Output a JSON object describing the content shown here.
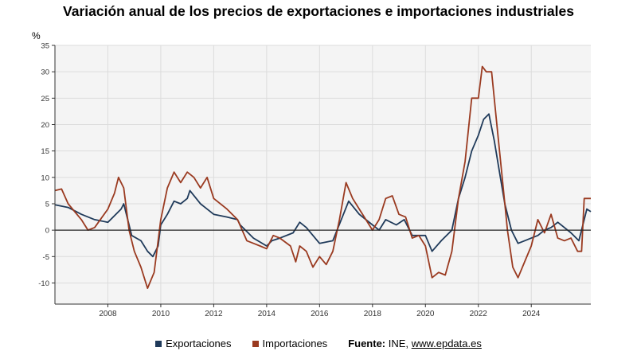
{
  "title": "Variación anual de los precios de exportaciones e importaciones industriales",
  "legend": {
    "series1": "Exportaciones",
    "series2": "Importaciones",
    "source_label": "Fuente:",
    "source_text": "INE,",
    "source_link": "www.epdata.es"
  },
  "colors": {
    "exportaciones": "#1f3a5a",
    "importaciones": "#9a3a20",
    "plot_bg": "#f4f4f4",
    "grid": "#dcdcdc",
    "zero_line": "#222222"
  },
  "chart_data": {
    "type": "line",
    "ylabel": "%",
    "ylim": [
      -14,
      35
    ],
    "yticks": [
      35,
      30,
      25,
      20,
      15,
      10,
      5,
      0,
      -5,
      -10
    ],
    "xlim": [
      2006.0,
      2026.25
    ],
    "xticks": [
      2008,
      2010,
      2012,
      2014,
      2016,
      2018,
      2020,
      2022,
      2024
    ],
    "grid": true,
    "legend_position": "bottom",
    "series": [
      {
        "name": "Exportaciones",
        "color": "#1f3a5a",
        "points": [
          [
            2006.0,
            4.8
          ],
          [
            2006.5,
            4.3
          ],
          [
            2007.0,
            3.0
          ],
          [
            2007.5,
            2.0
          ],
          [
            2008.0,
            1.5
          ],
          [
            2008.5,
            4.0
          ],
          [
            2008.6,
            5.0
          ],
          [
            2008.75,
            2.0
          ],
          [
            2008.9,
            -1.0
          ],
          [
            2009.25,
            -2.0
          ],
          [
            2009.5,
            -4.0
          ],
          [
            2009.7,
            -5.0
          ],
          [
            2009.9,
            -3.0
          ],
          [
            2010.0,
            1.0
          ],
          [
            2010.25,
            3.0
          ],
          [
            2010.5,
            5.5
          ],
          [
            2010.75,
            5.0
          ],
          [
            2011.0,
            6.0
          ],
          [
            2011.1,
            7.5
          ],
          [
            2011.5,
            5.0
          ],
          [
            2012.0,
            3.0
          ],
          [
            2012.5,
            2.5
          ],
          [
            2012.9,
            2.0
          ],
          [
            2013.0,
            1.0
          ],
          [
            2013.5,
            -1.5
          ],
          [
            2014.0,
            -3.0
          ],
          [
            2014.2,
            -2.0
          ],
          [
            2014.5,
            -1.5
          ],
          [
            2015.0,
            -0.5
          ],
          [
            2015.25,
            1.5
          ],
          [
            2015.5,
            0.5
          ],
          [
            2016.0,
            -2.5
          ],
          [
            2016.5,
            -2.0
          ],
          [
            2016.9,
            3.0
          ],
          [
            2017.1,
            5.5
          ],
          [
            2017.5,
            3.0
          ],
          [
            2018.0,
            1.0
          ],
          [
            2018.25,
            0.0
          ],
          [
            2018.5,
            2.0
          ],
          [
            2018.9,
            1.0
          ],
          [
            2019.2,
            2.0
          ],
          [
            2019.5,
            -1.0
          ],
          [
            2020.0,
            -1.0
          ],
          [
            2020.25,
            -4.0
          ],
          [
            2020.6,
            -2.0
          ],
          [
            2021.0,
            0.0
          ],
          [
            2021.25,
            6.0
          ],
          [
            2021.5,
            10.0
          ],
          [
            2021.75,
            15.0
          ],
          [
            2022.0,
            18.0
          ],
          [
            2022.2,
            21.0
          ],
          [
            2022.4,
            22.0
          ],
          [
            2022.6,
            17.0
          ],
          [
            2022.8,
            11.0
          ],
          [
            2023.0,
            5.0
          ],
          [
            2023.25,
            0.0
          ],
          [
            2023.5,
            -2.5
          ],
          [
            2023.75,
            -2.0
          ],
          [
            2024.0,
            -1.5
          ],
          [
            2024.25,
            -1.0
          ],
          [
            2024.5,
            0.0
          ],
          [
            2024.75,
            0.5
          ],
          [
            2025.0,
            1.5
          ],
          [
            2025.25,
            0.5
          ],
          [
            2025.5,
            -0.5
          ],
          [
            2025.8,
            -2.0
          ],
          [
            2026.0,
            2.0
          ],
          [
            2026.1,
            4.0
          ],
          [
            2026.25,
            3.5
          ]
        ]
      },
      {
        "name": "Importaciones",
        "color": "#9a3a20",
        "points": [
          [
            2006.0,
            7.5
          ],
          [
            2006.25,
            7.8
          ],
          [
            2006.5,
            5.0
          ],
          [
            2007.0,
            2.0
          ],
          [
            2007.25,
            0.0
          ],
          [
            2007.5,
            0.5
          ],
          [
            2008.0,
            4.0
          ],
          [
            2008.25,
            7.0
          ],
          [
            2008.4,
            10.0
          ],
          [
            2008.6,
            8.0
          ],
          [
            2008.8,
            0.0
          ],
          [
            2009.0,
            -4.0
          ],
          [
            2009.25,
            -7.0
          ],
          [
            2009.5,
            -11.0
          ],
          [
            2009.75,
            -8.0
          ],
          [
            2010.0,
            2.0
          ],
          [
            2010.25,
            8.0
          ],
          [
            2010.5,
            11.0
          ],
          [
            2010.75,
            9.0
          ],
          [
            2011.0,
            11.0
          ],
          [
            2011.25,
            10.0
          ],
          [
            2011.5,
            8.0
          ],
          [
            2011.75,
            10.0
          ],
          [
            2012.0,
            6.0
          ],
          [
            2012.5,
            4.0
          ],
          [
            2012.9,
            2.0
          ],
          [
            2013.25,
            -2.0
          ],
          [
            2013.5,
            -2.5
          ],
          [
            2013.75,
            -3.0
          ],
          [
            2014.0,
            -3.5
          ],
          [
            2014.25,
            -1.0
          ],
          [
            2014.5,
            -1.5
          ],
          [
            2014.9,
            -3.0
          ],
          [
            2015.1,
            -6.0
          ],
          [
            2015.25,
            -3.0
          ],
          [
            2015.5,
            -4.0
          ],
          [
            2015.75,
            -7.0
          ],
          [
            2016.0,
            -5.0
          ],
          [
            2016.25,
            -6.5
          ],
          [
            2016.5,
            -4.0
          ],
          [
            2016.75,
            2.0
          ],
          [
            2017.0,
            9.0
          ],
          [
            2017.25,
            6.0
          ],
          [
            2017.5,
            4.0
          ],
          [
            2017.75,
            2.0
          ],
          [
            2018.0,
            0.0
          ],
          [
            2018.25,
            2.0
          ],
          [
            2018.5,
            6.0
          ],
          [
            2018.75,
            6.5
          ],
          [
            2019.0,
            3.0
          ],
          [
            2019.25,
            2.5
          ],
          [
            2019.5,
            -1.5
          ],
          [
            2019.75,
            -1.0
          ],
          [
            2020.0,
            -3.0
          ],
          [
            2020.25,
            -9.0
          ],
          [
            2020.5,
            -8.0
          ],
          [
            2020.75,
            -8.5
          ],
          [
            2021.0,
            -4.0
          ],
          [
            2021.25,
            6.0
          ],
          [
            2021.5,
            13.0
          ],
          [
            2021.75,
            25.0
          ],
          [
            2022.0,
            25.0
          ],
          [
            2022.15,
            31.0
          ],
          [
            2022.3,
            30.0
          ],
          [
            2022.5,
            30.0
          ],
          [
            2022.7,
            20.0
          ],
          [
            2022.9,
            10.0
          ],
          [
            2023.1,
            0.0
          ],
          [
            2023.3,
            -7.0
          ],
          [
            2023.5,
            -9.0
          ],
          [
            2023.75,
            -6.0
          ],
          [
            2024.0,
            -3.0
          ],
          [
            2024.25,
            2.0
          ],
          [
            2024.5,
            -0.5
          ],
          [
            2024.75,
            3.0
          ],
          [
            2025.0,
            -1.5
          ],
          [
            2025.25,
            -2.0
          ],
          [
            2025.5,
            -1.5
          ],
          [
            2025.75,
            -4.0
          ],
          [
            2025.9,
            -4.0
          ],
          [
            2026.0,
            6.0
          ],
          [
            2026.25,
            6.0
          ]
        ]
      }
    ]
  }
}
